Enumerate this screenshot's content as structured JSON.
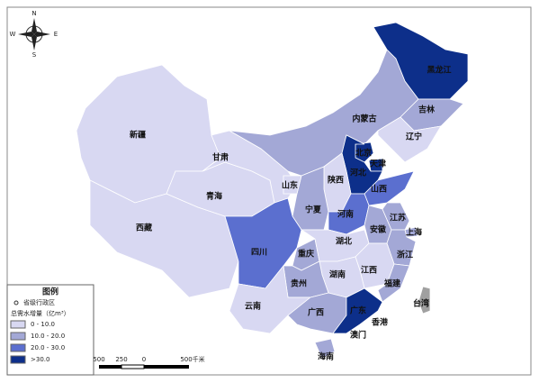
{
  "compass": {
    "n": "N",
    "s": "S",
    "w": "W",
    "e": "E"
  },
  "provinces": [
    {
      "name": "新疆",
      "color": "#d8d8f2"
    },
    {
      "name": "西藏",
      "color": "#d8d8f2"
    },
    {
      "name": "青海",
      "color": "#d8d8f2"
    },
    {
      "name": "甘肃",
      "color": "#d8d8f2"
    },
    {
      "name": "内蒙古",
      "color": "#a3a8d6"
    },
    {
      "name": "黑龙江",
      "color": "#0d2f8a"
    },
    {
      "name": "吉林",
      "color": "#a3a8d6"
    },
    {
      "name": "辽宁",
      "color": "#d8d8f2"
    },
    {
      "name": "北京",
      "color": "#0d2f8a"
    },
    {
      "name": "天津",
      "color": "#0d2f8a"
    },
    {
      "name": "河北",
      "color": "#0d2f8a"
    },
    {
      "name": "山西",
      "color": "#d8d8f2"
    },
    {
      "name": "陕西",
      "color": "#a3a8d6"
    },
    {
      "name": "宁夏",
      "color": "#d8d8f2"
    },
    {
      "name": "山东",
      "color": "#5b6fcf"
    },
    {
      "name": "河南",
      "color": "#5b6fcf"
    },
    {
      "name": "四川",
      "color": "#5b6fcf"
    },
    {
      "name": "重庆",
      "color": "#a3a8d6"
    },
    {
      "name": "湖北",
      "color": "#d8d8f2"
    },
    {
      "name": "安徽",
      "color": "#a3a8d6"
    },
    {
      "name": "江苏",
      "color": "#a3a8d6"
    },
    {
      "name": "上海",
      "color": "#a3a8d6"
    },
    {
      "name": "浙江",
      "color": "#a3a8d6"
    },
    {
      "name": "江西",
      "color": "#d8d8f2"
    },
    {
      "name": "湖南",
      "color": "#d8d8f2"
    },
    {
      "name": "福建",
      "color": "#a3a8d6"
    },
    {
      "name": "贵州",
      "color": "#a3a8d6"
    },
    {
      "name": "云南",
      "color": "#d8d8f2"
    },
    {
      "name": "广西",
      "color": "#a3a8d6"
    },
    {
      "name": "广东",
      "color": "#0d2f8a"
    },
    {
      "name": "海南",
      "color": "#a3a8d6"
    },
    {
      "name": "台湾",
      "color": "#a0a0a0"
    },
    {
      "name": "香港"
    },
    {
      "name": "澳门"
    }
  ],
  "legend": {
    "title": "图例",
    "capital": "省级行政区",
    "heading": "总需水增量（亿m³）",
    "classes": [
      {
        "label": "0 - 10.0",
        "color": "#d8d8f2"
      },
      {
        "label": "10.0 - 20.0",
        "color": "#a3a8d6"
      },
      {
        "label": "20.0 - 30.0",
        "color": "#5b6fcf"
      },
      {
        "label": ">30.0",
        "color": "#0d2f8a"
      }
    ]
  },
  "scale": [
    "500",
    "250",
    "0",
    "500千米"
  ]
}
